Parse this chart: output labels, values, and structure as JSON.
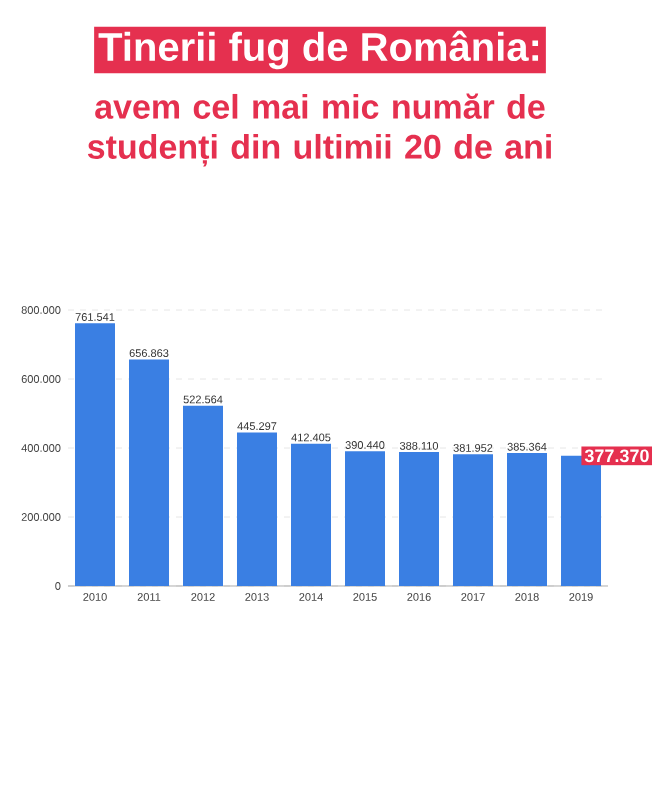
{
  "chart_data": {
    "type": "bar",
    "title": "Tinerii fug de România:",
    "subtitle": "avem cel mai mic număr de studenți din ultimii 20 de ani",
    "categories": [
      "2010",
      "2011",
      "2012",
      "2013",
      "2014",
      "2015",
      "2016",
      "2017",
      "2018",
      "2019"
    ],
    "values": [
      761541,
      656863,
      522564,
      445297,
      412405,
      390440,
      388110,
      381952,
      385364,
      377370
    ],
    "value_labels": [
      "761.541",
      "656.863",
      "522.564",
      "445.297",
      "412.405",
      "390.440",
      "388.110",
      "381.952",
      "385.364",
      "377.370"
    ],
    "color": "#3a7fe3",
    "ylim": [
      0,
      800000
    ],
    "yticks": [
      0,
      {
        "value": 200000,
        "label": "200.000"
      },
      {
        "value": 400000,
        "label": "400.000"
      },
      {
        "value": 600000,
        "label": "600.000"
      },
      {
        "value": 800000,
        "label": "800.000"
      }
    ],
    "grid": "y"
  }
}
